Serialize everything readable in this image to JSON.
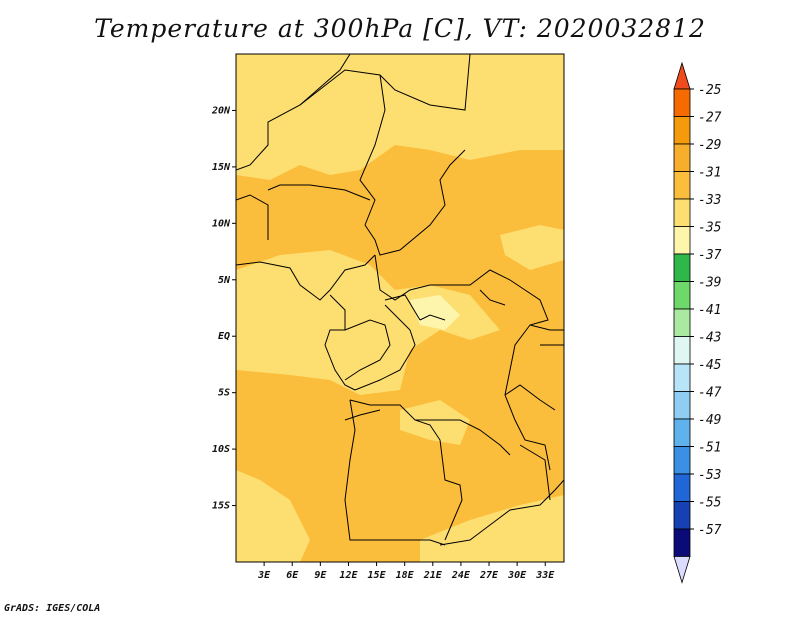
{
  "title": "Temperature at 300hPa [C], VT: 2020032812",
  "footer": "GrADS: IGES/COLA",
  "map": {
    "lon_range": [
      0,
      35
    ],
    "lat_range": [
      -20,
      25
    ],
    "lon_ticks": [
      {
        "value": 3,
        "label": "3E"
      },
      {
        "value": 6,
        "label": "6E"
      },
      {
        "value": 9,
        "label": "9E"
      },
      {
        "value": 12,
        "label": "12E"
      },
      {
        "value": 15,
        "label": "15E"
      },
      {
        "value": 18,
        "label": "18E"
      },
      {
        "value": 21,
        "label": "21E"
      },
      {
        "value": 24,
        "label": "24E"
      },
      {
        "value": 27,
        "label": "27E"
      },
      {
        "value": 30,
        "label": "30E"
      },
      {
        "value": 33,
        "label": "33E"
      }
    ],
    "lat_ticks": [
      {
        "value": 20,
        "label": "20N"
      },
      {
        "value": 15,
        "label": "15N"
      },
      {
        "value": 10,
        "label": "10N"
      },
      {
        "value": 5,
        "label": "5N"
      },
      {
        "value": 0,
        "label": "EQ"
      },
      {
        "value": -5,
        "label": "5S"
      },
      {
        "value": -10,
        "label": "10S"
      },
      {
        "value": -15,
        "label": "15S"
      }
    ]
  },
  "colorbar": {
    "top_arrow_color": "#f04b1f",
    "bottom_arrow_color": "#dcdcff",
    "bins": [
      {
        "color": "#f56b00",
        "label": "-25"
      },
      {
        "color": "#f59a0a",
        "label": "-27"
      },
      {
        "color": "#f7ae2d",
        "label": "-29"
      },
      {
        "color": "#fbbd3c",
        "label": "-31"
      },
      {
        "color": "#fddf71",
        "label": "-33"
      },
      {
        "color": "#fef5ad",
        "label": "-35"
      },
      {
        "color": "#2fb84a",
        "label": "-37"
      },
      {
        "color": "#6ed86a",
        "label": "-39"
      },
      {
        "color": "#a9e9a0",
        "label": "-41"
      },
      {
        "color": "#dff6f3",
        "label": "-43"
      },
      {
        "color": "#b8e4f7",
        "label": "-45"
      },
      {
        "color": "#8fcdf2",
        "label": "-47"
      },
      {
        "color": "#5fb2ec",
        "label": "-49"
      },
      {
        "color": "#3b8fe4",
        "label": "-51"
      },
      {
        "color": "#2166d6",
        "label": "-53"
      },
      {
        "color": "#1541b4",
        "label": "-55"
      },
      {
        "color": "#0a0a78",
        "label": "-57"
      }
    ]
  },
  "fill_colors": {
    "warm": "#fbbd3c",
    "mid": "#fddf71",
    "cool": "#fef5ad"
  }
}
